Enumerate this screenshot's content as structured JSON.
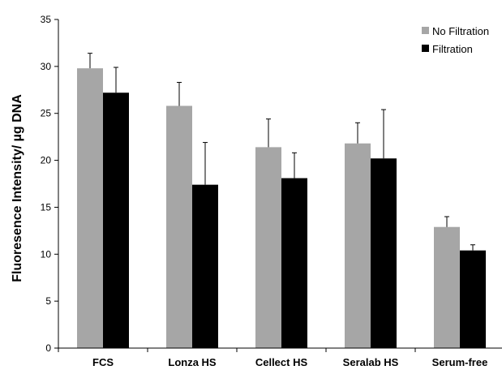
{
  "chart_data": {
    "type": "bar",
    "title": "",
    "xlabel": "",
    "ylabel": "Fluoresence Intensity/ µg DNA",
    "ylim": [
      0,
      35
    ],
    "yticks": [
      0,
      5,
      10,
      15,
      20,
      25,
      30,
      35
    ],
    "grid": false,
    "legend_position": "top-right",
    "categories": [
      "FCS",
      "Lonza HS",
      "Cellect HS",
      "Seralab HS",
      "Serum-free"
    ],
    "series": [
      {
        "name": "No Filtration",
        "color": "#a6a6a6",
        "values": [
          29.8,
          25.8,
          21.4,
          21.8,
          12.9
        ],
        "error": [
          1.6,
          2.5,
          3.0,
          2.2,
          1.1
        ]
      },
      {
        "name": "Filtration",
        "color": "#000000",
        "values": [
          27.2,
          17.4,
          18.1,
          20.2,
          10.4
        ],
        "error": [
          2.7,
          4.5,
          2.7,
          5.2,
          0.6
        ]
      }
    ]
  }
}
